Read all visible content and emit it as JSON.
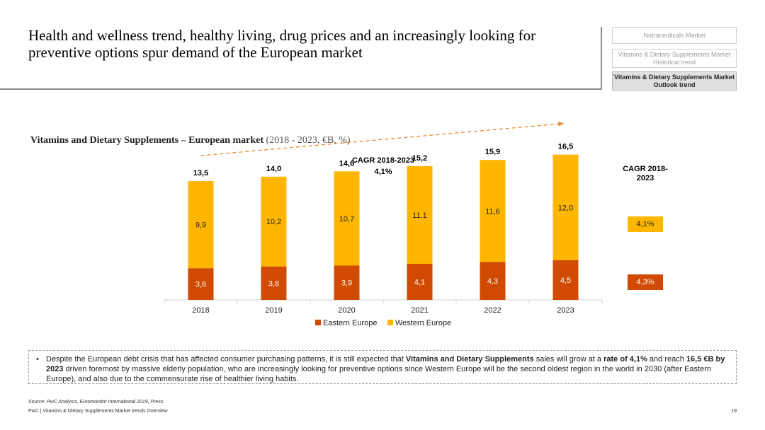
{
  "header": {
    "title": "Health and wellness trend, healthy living, drug prices and an increasingly looking for preventive options spur demand of the European market"
  },
  "nav": {
    "items": [
      {
        "label": "Nutraceuticals Market",
        "active": false
      },
      {
        "label": "Vitamins & Dietary Supplements Market Historical trend",
        "active": false
      },
      {
        "label": "Vitamins & Dietary Supplements Market Outlook trend",
        "active": true
      }
    ]
  },
  "chart_header": {
    "title_bold": "Vitamins and Dietary Supplements – European market",
    "title_sub": "(2018 - 2023, €B, %)"
  },
  "chart_data": {
    "type": "bar",
    "stacked": true,
    "categories": [
      "2018",
      "2019",
      "2020",
      "2021",
      "2022",
      "2023"
    ],
    "series": [
      {
        "name": "Eastern Europe",
        "values": [
          3.6,
          3.8,
          3.9,
          4.1,
          4.3,
          4.5
        ],
        "labels": [
          "3,6",
          "3,8",
          "3,9",
          "4,1",
          "4,3",
          "4,5"
        ],
        "color": "#d04a02"
      },
      {
        "name": "Western Europe",
        "values": [
          9.9,
          10.2,
          10.7,
          11.1,
          11.6,
          12.0
        ],
        "labels": [
          "9,9",
          "10,2",
          "10,7",
          "11,1",
          "11,6",
          "12,0"
        ],
        "color": "#ffb600"
      }
    ],
    "totals": [
      13.5,
      14.0,
      14.6,
      15.2,
      15.9,
      16.5
    ],
    "total_labels": [
      "13,5",
      "14,0",
      "14,6",
      "15,2",
      "15,9",
      "16,5"
    ],
    "cagr_annotation": {
      "label": "CAGR 2018-2023",
      "value": "4,1%"
    },
    "legend_position": "bottom",
    "ylim": [
      0,
      18
    ]
  },
  "side_cagr": {
    "title": "CAGR 2018-2023",
    "western": "4,1%",
    "eastern": "4,3%"
  },
  "note": {
    "bullet": "•",
    "segments": [
      {
        "text": "Despite the European debt crisis that has affected consumer purchasing patterns, it is still expected that ",
        "bold": false
      },
      {
        "text": "Vitamins and Dietary Supplements",
        "bold": true
      },
      {
        "text": " sales will grow at a ",
        "bold": false
      },
      {
        "text": "rate of 4,1%",
        "bold": true
      },
      {
        "text": " and reach ",
        "bold": false
      },
      {
        "text": "16,5 €B by 2023",
        "bold": true
      },
      {
        "text": " driven foremost by massive elderly population, who are increasingly looking for preventive options since Western Europe will be the second oldest region in the world in 2030 (after Eastern Europe), and also due to the commensurate rise of healthier living habits.",
        "bold": false
      }
    ]
  },
  "footer": {
    "source": "Source: PwC Analysis, Euromonitor International 2019, Press",
    "text": "PwC | Vitamins & Dietary Supplements Market trends Overview",
    "page": "19"
  }
}
